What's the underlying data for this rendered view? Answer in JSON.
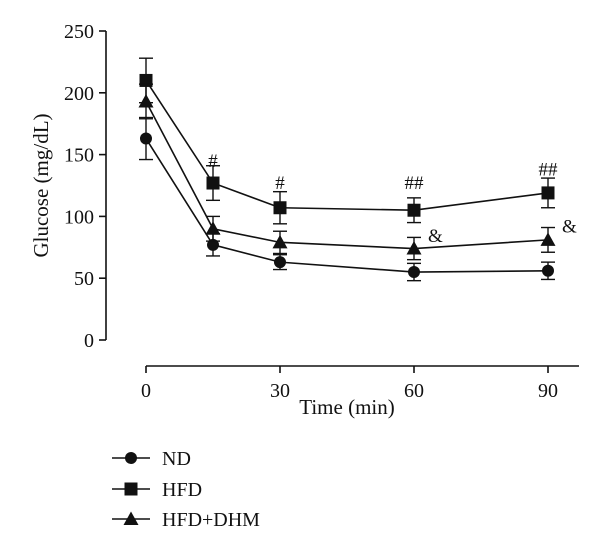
{
  "chart_data": {
    "type": "line",
    "xlabel": "Time (min)",
    "ylabel": "Glucose (mg/dL)",
    "x": [
      0,
      15,
      30,
      60,
      90
    ],
    "x_ticks": [
      0,
      30,
      60,
      90
    ],
    "y_ticks": [
      0,
      50,
      100,
      150,
      200,
      250
    ],
    "xlim": [
      0,
      90
    ],
    "ylim": [
      0,
      250
    ],
    "grid": false,
    "legend_position": "bottom-left",
    "series": [
      {
        "name": "ND",
        "marker": "circle",
        "values": [
          163,
          77,
          63,
          55,
          56
        ],
        "errors": [
          17,
          9,
          6,
          7,
          7
        ]
      },
      {
        "name": "HFD",
        "marker": "square",
        "values": [
          210,
          127,
          107,
          105,
          119
        ],
        "errors": [
          18,
          14,
          13,
          10,
          12
        ]
      },
      {
        "name": "HFD+DHM",
        "marker": "triangle",
        "values": [
          193,
          90,
          79,
          74,
          81
        ],
        "errors": [
          14,
          10,
          9,
          9,
          10
        ]
      }
    ],
    "annotations": [
      {
        "text": "#",
        "x": 15,
        "y": 145
      },
      {
        "text": "#",
        "x": 30,
        "y": 127
      },
      {
        "text": "##",
        "x": 60,
        "y": 127
      },
      {
        "text": "##",
        "x": 90,
        "y": 138
      },
      {
        "text": "&",
        "x": 60,
        "y": 84
      },
      {
        "text": "&",
        "x": 90,
        "y": 92
      }
    ]
  }
}
